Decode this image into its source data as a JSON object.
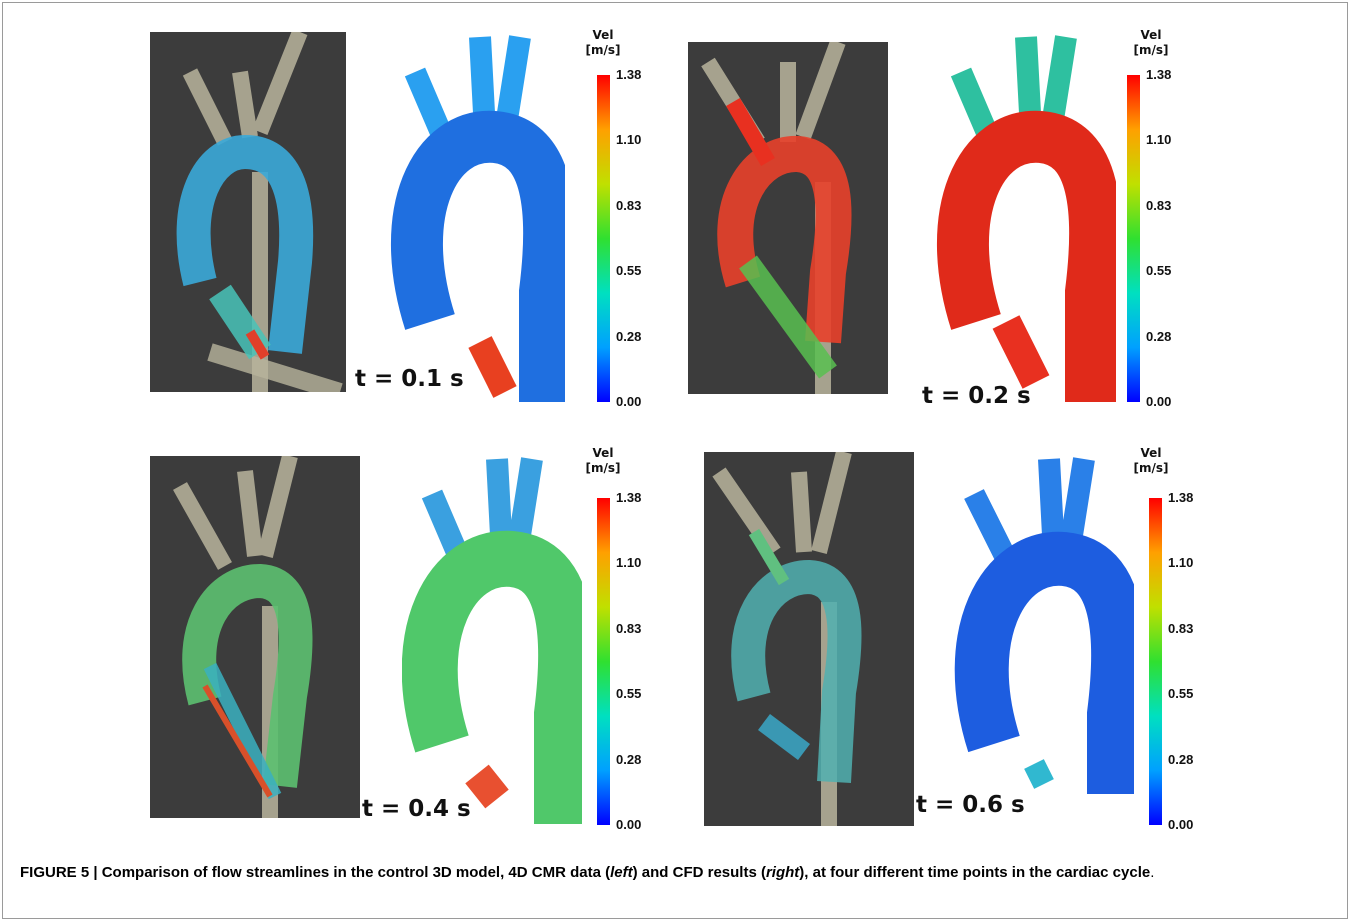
{
  "panels": [
    {
      "time_label": "t = 0.1 s",
      "scale_title_line1": "Vel",
      "scale_title_line2": "[m/s]",
      "cmr_colors": [
        "#3aa8d8",
        "#48c3b8",
        "#e0402a"
      ],
      "cfd_colors": [
        "#1f6fe0",
        "#2aa0f0",
        "#e84020"
      ]
    },
    {
      "time_label": "t = 0.2 s",
      "scale_title_line1": "Vel",
      "scale_title_line2": "[m/s]",
      "cmr_colors": [
        "#e8402a",
        "#58c050",
        "#e83020"
      ],
      "cfd_colors": [
        "#e02a1a",
        "#2ec0a0",
        "#e83020"
      ]
    },
    {
      "time_label": "t = 0.4 s",
      "scale_title_line1": "Vel",
      "scale_title_line2": "[m/s]",
      "cmr_colors": [
        "#5cc070",
        "#3ab0c0",
        "#d8502a"
      ],
      "cfd_colors": [
        "#50c86a",
        "#3aa0e0",
        "#e85030"
      ]
    },
    {
      "time_label": "t = 0.6 s",
      "scale_title_line1": "Vel",
      "scale_title_line2": "[m/s]",
      "cmr_colors": [
        "#50b0b0",
        "#3aa8c8",
        "#60c080"
      ],
      "cfd_colors": [
        "#1d5de0",
        "#2a80e8",
        "#30b8d0"
      ]
    }
  ],
  "scale_ticks": [
    "1.38",
    "1.10",
    "0.83",
    "0.55",
    "0.28",
    "0.00"
  ],
  "colormap": [
    "#0000ff",
    "#00a0ff",
    "#00e0c0",
    "#30e030",
    "#c0e000",
    "#ffa000",
    "#ff0000"
  ],
  "caption": {
    "prefix": "FIGURE 5 | Comparison of flow streamlines in the control 3D model, 4D CMR data (",
    "left_word": "left",
    "middle": ") and CFD results (",
    "right_word": "right",
    "suffix": "), at four different time points in the cardiac cycle",
    "period": "."
  }
}
